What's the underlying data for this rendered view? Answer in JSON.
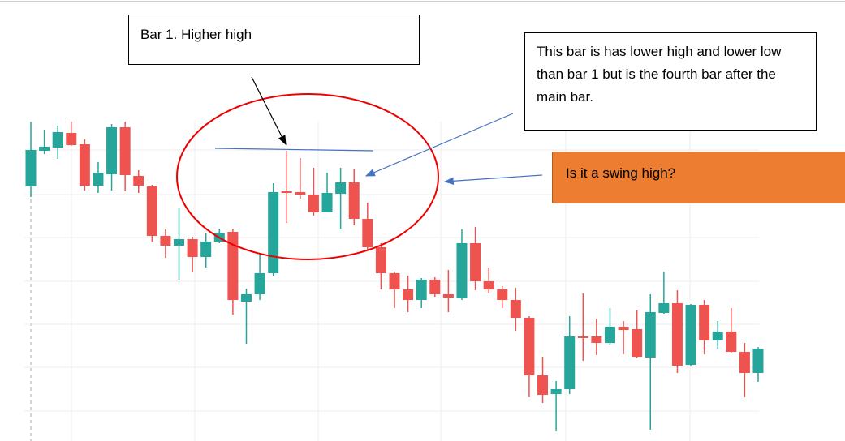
{
  "chart_data": {
    "type": "candlestick",
    "open": [
      314,
      358,
      362,
      380,
      366,
      315,
      329,
      387,
      327,
      314,
      253,
      241,
      249,
      227,
      246,
      258,
      172,
      181,
      207,
      308,
      307,
      304,
      282,
      305,
      319,
      274,
      239,
      207,
      187,
      174,
      199,
      181,
      176,
      244,
      197,
      187,
      174,
      152,
      81,
      58,
      64,
      129,
      129,
      121,
      141,
      138,
      103,
      158,
      170,
      94,
      168,
      124,
      135,
      110,
      84
    ],
    "high": [
      394,
      384,
      389,
      394,
      372,
      344,
      391,
      394,
      334,
      316,
      261,
      288,
      252,
      256,
      262,
      261,
      188,
      232,
      318,
      358,
      349,
      337,
      331,
      337,
      336,
      294,
      244,
      209,
      204,
      201,
      202,
      211,
      261,
      264,
      214,
      191,
      189,
      154,
      104,
      74,
      154,
      182,
      151,
      164,
      148,
      161,
      181,
      209,
      186,
      169,
      174,
      148,
      164,
      121,
      116
    ],
    "low": [
      301,
      354,
      348,
      364,
      309,
      306,
      309,
      308,
      306,
      246,
      226,
      199,
      208,
      214,
      244,
      156,
      120,
      174,
      204,
      269,
      299,
      278,
      282,
      262,
      266,
      236,
      187,
      164,
      159,
      164,
      178,
      159,
      174,
      186,
      182,
      164,
      136,
      54,
      47,
      12,
      58,
      99,
      106,
      119,
      107,
      102,
      14,
      157,
      84,
      92,
      107,
      114,
      108,
      54,
      73
    ],
    "close": [
      359,
      363,
      381,
      365,
      315,
      331,
      387,
      328,
      315,
      253,
      241,
      249,
      227,
      246,
      257,
      174,
      181,
      207,
      307,
      306,
      304,
      282,
      306,
      319,
      274,
      239,
      207,
      187,
      174,
      199,
      181,
      177,
      244,
      197,
      187,
      174,
      152,
      81,
      57,
      64,
      129,
      127,
      121,
      141,
      137,
      104,
      159,
      170,
      93,
      168,
      124,
      135,
      110,
      84,
      114
    ],
    "up_color": "#26a69a",
    "down_color": "#ef5350",
    "ylim": [
      0,
      544
    ],
    "yticks": [
      359,
      304,
      251,
      197,
      144,
      91,
      37
    ],
    "grid": true,
    "annotations": [
      "Bar 1. Higher high",
      "This bar is has lower high and lower low than bar 1 but is the fourth bar after the main bar.",
      "Is it a swing high?"
    ]
  }
}
